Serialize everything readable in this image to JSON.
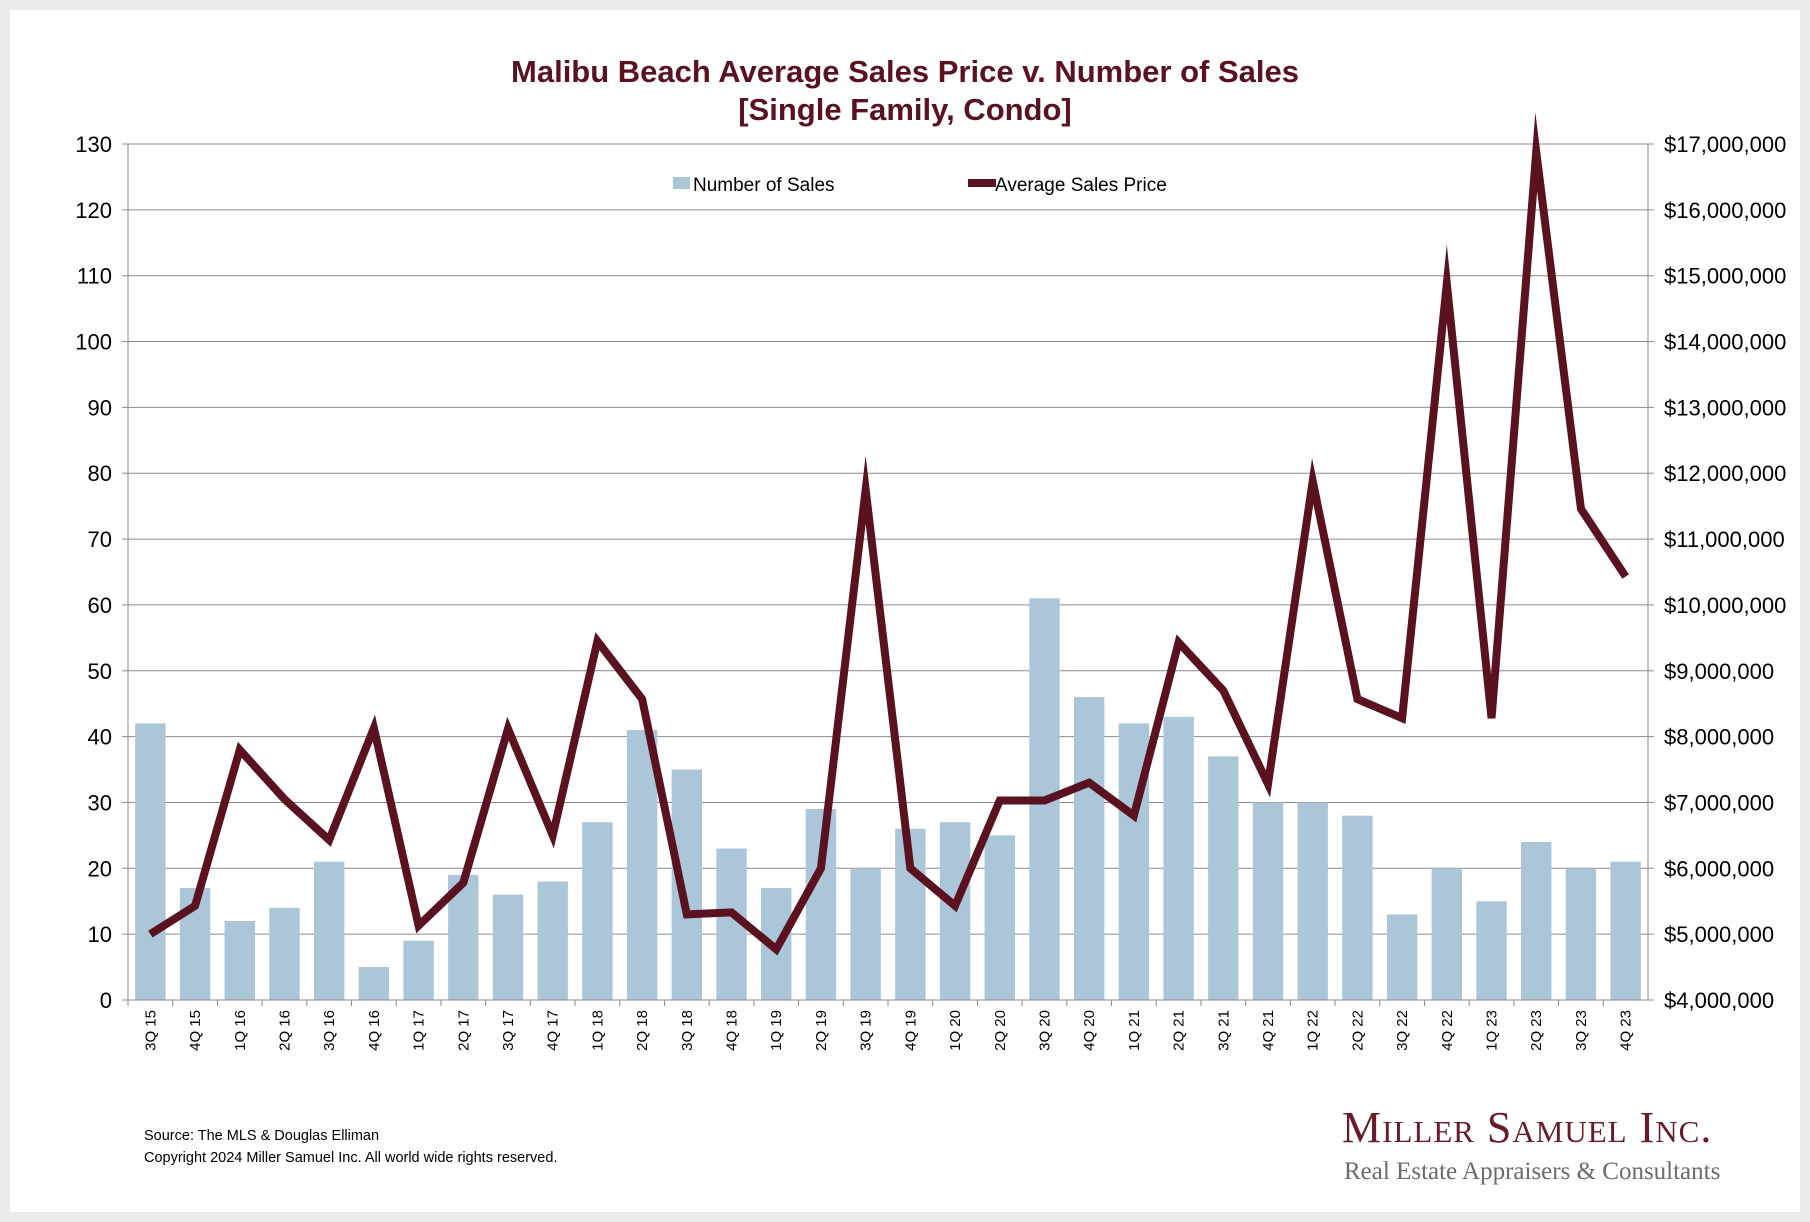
{
  "chart_data": {
    "type": "bar",
    "title": "Malibu Beach Average Sales Price v. Number of Sales",
    "subtitle": "[Single Family, Condo]",
    "categories": [
      "3Q 15",
      "4Q 15",
      "1Q 16",
      "2Q 16",
      "3Q 16",
      "4Q 16",
      "1Q 17",
      "2Q 17",
      "3Q 17",
      "4Q 17",
      "1Q 18",
      "2Q 18",
      "3Q 18",
      "4Q 18",
      "1Q 19",
      "2Q 19",
      "3Q 19",
      "4Q 19",
      "1Q 20",
      "2Q 20",
      "3Q 20",
      "4Q 20",
      "1Q 21",
      "2Q 21",
      "3Q 21",
      "4Q 21",
      "1Q 22",
      "2Q 22",
      "3Q 22",
      "4Q 22",
      "1Q 23",
      "2Q 23",
      "3Q 23",
      "4Q 23"
    ],
    "series": [
      {
        "name": "Number of Sales",
        "type": "bar",
        "axis": "left",
        "color": "#abc5d9",
        "values": [
          42,
          17,
          12,
          14,
          21,
          5,
          9,
          19,
          16,
          18,
          27,
          41,
          35,
          23,
          17,
          29,
          20,
          26,
          27,
          25,
          61,
          46,
          42,
          43,
          37,
          30,
          30,
          28,
          13,
          20,
          15,
          24,
          20,
          21
        ]
      },
      {
        "name": "Average Sales Price",
        "type": "line",
        "axis": "right",
        "color": "#5b1220",
        "values": [
          5000000,
          5430000,
          7800000,
          7050000,
          6430000,
          8130000,
          5130000,
          5780000,
          8120000,
          6500000,
          9450000,
          8570000,
          5300000,
          5330000,
          4770000,
          6000000,
          11750000,
          6000000,
          5430000,
          7030000,
          7030000,
          7300000,
          6800000,
          9430000,
          8700000,
          7280000,
          11880000,
          8570000,
          8280000,
          14880000,
          8280000,
          16880000,
          11460000,
          10430000
        ]
      }
    ],
    "left_axis": {
      "min": 0,
      "max": 130,
      "step": 10,
      "tick_labels": [
        "0",
        "10",
        "20",
        "30",
        "40",
        "50",
        "60",
        "70",
        "80",
        "90",
        "100",
        "110",
        "120",
        "130"
      ]
    },
    "right_axis": {
      "min": 4000000,
      "max": 17000000,
      "step": 1000000,
      "tick_labels": [
        "$4,000,000",
        "$5,000,000",
        "$6,000,000",
        "$7,000,000",
        "$8,000,000",
        "$9,000,000",
        "$10,000,000",
        "$11,000,000",
        "$12,000,000",
        "$13,000,000",
        "$14,000,000",
        "$15,000,000",
        "$16,000,000",
        "$17,000,000"
      ]
    },
    "grid": true,
    "legend_position": "top-center",
    "xlabel": "",
    "ylabel": ""
  },
  "footer": {
    "source_line": "Source: The MLS & Douglas Elliman",
    "copyright_line": "Copyright 2024 Miller Samuel Inc.  All world wide rights reserved."
  },
  "logo": {
    "name": "Miller Samuel Inc.",
    "tagline": "Real Estate Appraisers & Consultants"
  }
}
